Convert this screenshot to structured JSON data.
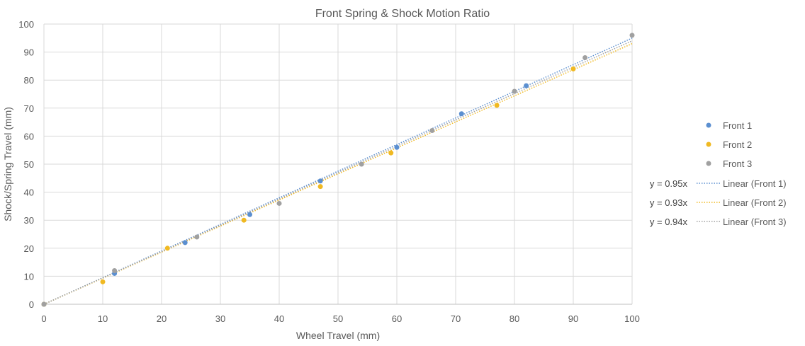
{
  "chart_data": {
    "type": "scatter",
    "title": "Front Spring & Shock Motion Ratio",
    "xlabel": "Wheel Travel (mm)",
    "ylabel": "Shock/Spring Travel (mm)",
    "xlim": [
      0,
      100
    ],
    "ylim": [
      0,
      100
    ],
    "xticks": [
      0,
      10,
      20,
      30,
      40,
      50,
      60,
      70,
      80,
      90,
      100
    ],
    "yticks": [
      0,
      10,
      20,
      30,
      40,
      50,
      60,
      70,
      80,
      90,
      100
    ],
    "grid": true,
    "legend_position": "right",
    "series": [
      {
        "name": "Front 1",
        "color": "#5b8fd0",
        "x": [
          0,
          12,
          24,
          35,
          47,
          60,
          71,
          82
        ],
        "y": [
          0,
          11,
          22,
          32,
          44,
          56,
          68,
          78
        ]
      },
      {
        "name": "Front 2",
        "color": "#f0b922",
        "x": [
          0,
          10,
          21,
          34,
          47,
          59,
          77,
          90
        ],
        "y": [
          0,
          8,
          20,
          30,
          42,
          54,
          71,
          84
        ]
      },
      {
        "name": "Front 3",
        "color": "#a0a0a0",
        "x": [
          0,
          12,
          26,
          40,
          54,
          66,
          80,
          92,
          100
        ],
        "y": [
          0,
          12,
          24,
          36,
          50,
          62,
          76,
          88,
          96
        ]
      }
    ],
    "trendlines": [
      {
        "name": "Linear (Front 1)",
        "series": "Front 1",
        "slope": 0.95,
        "equation": "y = 0.95x",
        "color": "#5b8fd0"
      },
      {
        "name": "Linear (Front 2)",
        "series": "Front 2",
        "slope": 0.93,
        "equation": "y = 0.93x",
        "color": "#f0b922"
      },
      {
        "name": "Linear (Front 3)",
        "series": "Front 3",
        "slope": 0.94,
        "equation": "y = 0.94x",
        "color": "#a0a0a0"
      }
    ]
  }
}
